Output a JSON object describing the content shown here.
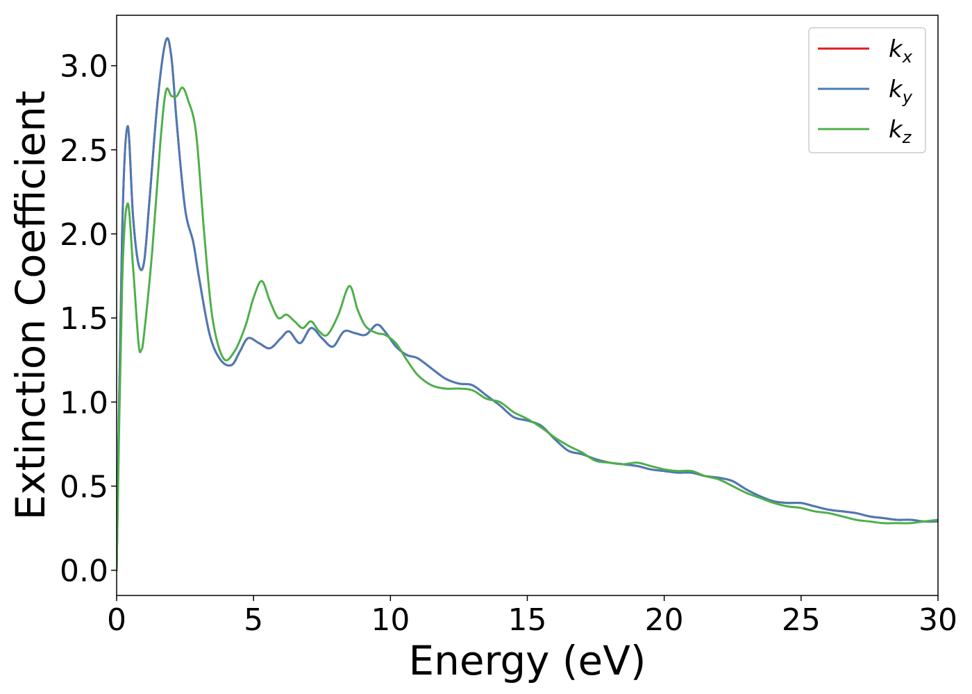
{
  "chart_data": {
    "type": "line",
    "xlabel": "Energy (eV)",
    "ylabel": "Extinction Coefficient",
    "xlim": [
      0,
      30
    ],
    "ylim": [
      -0.15,
      3.3
    ],
    "xticks": [
      0,
      5,
      10,
      15,
      20,
      25,
      30
    ],
    "xtick_labels": [
      "0",
      "5",
      "10",
      "15",
      "20",
      "25",
      "30"
    ],
    "yticks": [
      0.0,
      0.5,
      1.0,
      1.5,
      2.0,
      2.5,
      3.0
    ],
    "ytick_labels": [
      "0.0",
      "0.5",
      "1.0",
      "1.5",
      "2.0",
      "2.5",
      "3.0"
    ],
    "grid": false,
    "legend_position": "top-right",
    "series": [
      {
        "name": "k",
        "subscript": "x",
        "color": "#e41a1c",
        "x": [
          0.0,
          0.2,
          0.4,
          0.6,
          0.8,
          1.0,
          1.2,
          1.5,
          1.8,
          2.0,
          2.2,
          2.5,
          2.8,
          3.0,
          3.4,
          3.8,
          4.2,
          4.5,
          4.8,
          5.2,
          5.6,
          6.0,
          6.3,
          6.7,
          7.1,
          7.5,
          7.9,
          8.3,
          8.7,
          9.1,
          9.5,
          9.8,
          10.2,
          10.6,
          11.0,
          11.5,
          12.0,
          12.5,
          13.0,
          13.5,
          14.0,
          14.5,
          15.0,
          15.5,
          16.0,
          16.5,
          17.0,
          17.5,
          18.0,
          18.5,
          19.0,
          19.5,
          20.0,
          20.5,
          21.0,
          21.5,
          22.0,
          22.5,
          23.0,
          23.5,
          24.0,
          24.5,
          25.0,
          25.5,
          26.0,
          26.5,
          27.0,
          27.5,
          28.0,
          28.5,
          29.0,
          29.5,
          30.0
        ],
        "y": [
          0.0,
          2.0,
          2.64,
          2.1,
          1.82,
          1.83,
          2.2,
          2.8,
          3.15,
          3.05,
          2.65,
          2.15,
          1.95,
          1.75,
          1.4,
          1.25,
          1.22,
          1.3,
          1.38,
          1.35,
          1.32,
          1.38,
          1.42,
          1.35,
          1.44,
          1.38,
          1.33,
          1.42,
          1.41,
          1.4,
          1.46,
          1.42,
          1.33,
          1.28,
          1.26,
          1.2,
          1.14,
          1.11,
          1.1,
          1.04,
          0.98,
          0.91,
          0.89,
          0.86,
          0.78,
          0.71,
          0.69,
          0.66,
          0.64,
          0.63,
          0.62,
          0.6,
          0.59,
          0.58,
          0.58,
          0.56,
          0.55,
          0.53,
          0.48,
          0.44,
          0.41,
          0.4,
          0.4,
          0.38,
          0.36,
          0.35,
          0.34,
          0.32,
          0.31,
          0.3,
          0.3,
          0.29,
          0.29
        ]
      },
      {
        "name": "k",
        "subscript": "y",
        "color": "#4a7ab5",
        "x": [
          0.0,
          0.2,
          0.4,
          0.6,
          0.8,
          1.0,
          1.2,
          1.5,
          1.8,
          2.0,
          2.2,
          2.5,
          2.8,
          3.0,
          3.4,
          3.8,
          4.2,
          4.5,
          4.8,
          5.2,
          5.6,
          6.0,
          6.3,
          6.7,
          7.1,
          7.5,
          7.9,
          8.3,
          8.7,
          9.1,
          9.5,
          9.8,
          10.2,
          10.6,
          11.0,
          11.5,
          12.0,
          12.5,
          13.0,
          13.5,
          14.0,
          14.5,
          15.0,
          15.5,
          16.0,
          16.5,
          17.0,
          17.5,
          18.0,
          18.5,
          19.0,
          19.5,
          20.0,
          20.5,
          21.0,
          21.5,
          22.0,
          22.5,
          23.0,
          23.5,
          24.0,
          24.5,
          25.0,
          25.5,
          26.0,
          26.5,
          27.0,
          27.5,
          28.0,
          28.5,
          29.0,
          29.5,
          30.0
        ],
        "y": [
          0.0,
          2.0,
          2.64,
          2.1,
          1.82,
          1.83,
          2.2,
          2.8,
          3.15,
          3.05,
          2.65,
          2.15,
          1.95,
          1.75,
          1.4,
          1.25,
          1.22,
          1.3,
          1.38,
          1.35,
          1.32,
          1.38,
          1.42,
          1.35,
          1.44,
          1.38,
          1.33,
          1.42,
          1.41,
          1.4,
          1.46,
          1.42,
          1.33,
          1.28,
          1.26,
          1.2,
          1.14,
          1.11,
          1.1,
          1.04,
          0.98,
          0.91,
          0.89,
          0.86,
          0.78,
          0.71,
          0.69,
          0.66,
          0.64,
          0.63,
          0.62,
          0.6,
          0.59,
          0.58,
          0.58,
          0.56,
          0.55,
          0.53,
          0.48,
          0.44,
          0.41,
          0.4,
          0.4,
          0.38,
          0.36,
          0.35,
          0.34,
          0.32,
          0.31,
          0.3,
          0.3,
          0.29,
          0.29
        ]
      },
      {
        "name": "k",
        "subscript": "z",
        "color": "#4daf4a",
        "x": [
          0.0,
          0.2,
          0.4,
          0.6,
          0.8,
          0.9,
          1.0,
          1.3,
          1.6,
          1.8,
          2.0,
          2.2,
          2.4,
          2.6,
          2.9,
          3.2,
          3.5,
          3.9,
          4.3,
          4.7,
          5.0,
          5.3,
          5.6,
          5.9,
          6.2,
          6.5,
          6.8,
          7.1,
          7.4,
          7.7,
          8.1,
          8.5,
          8.8,
          9.1,
          9.5,
          9.8,
          10.2,
          10.6,
          11.0,
          11.5,
          12.0,
          12.5,
          13.0,
          13.5,
          14.0,
          14.5,
          15.0,
          15.5,
          16.0,
          16.5,
          17.0,
          17.5,
          18.0,
          18.5,
          19.0,
          19.5,
          20.0,
          20.5,
          21.0,
          21.5,
          22.0,
          22.5,
          23.0,
          23.5,
          24.0,
          24.5,
          25.0,
          25.5,
          26.0,
          26.5,
          27.0,
          27.5,
          28.0,
          28.5,
          29.0,
          29.5,
          30.0
        ],
        "y": [
          0.0,
          1.7,
          2.18,
          1.8,
          1.35,
          1.31,
          1.4,
          1.9,
          2.55,
          2.85,
          2.82,
          2.82,
          2.87,
          2.8,
          2.6,
          2.0,
          1.5,
          1.26,
          1.3,
          1.45,
          1.62,
          1.72,
          1.6,
          1.5,
          1.52,
          1.48,
          1.44,
          1.48,
          1.42,
          1.4,
          1.52,
          1.69,
          1.55,
          1.45,
          1.41,
          1.4,
          1.35,
          1.25,
          1.16,
          1.1,
          1.08,
          1.08,
          1.07,
          1.02,
          1.0,
          0.94,
          0.9,
          0.85,
          0.79,
          0.74,
          0.7,
          0.65,
          0.64,
          0.63,
          0.64,
          0.62,
          0.6,
          0.59,
          0.59,
          0.56,
          0.54,
          0.5,
          0.46,
          0.43,
          0.4,
          0.38,
          0.37,
          0.35,
          0.34,
          0.32,
          0.3,
          0.29,
          0.28,
          0.28,
          0.28,
          0.29,
          0.3
        ]
      }
    ]
  }
}
